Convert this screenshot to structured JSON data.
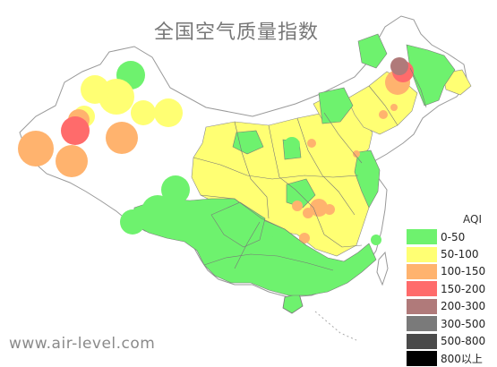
{
  "title": "全国空气质量指数",
  "site": "www.air-level.com",
  "legend": {
    "title": "AQI",
    "items": [
      {
        "label": "0-50",
        "color": "#6ef26e"
      },
      {
        "label": "50-100",
        "color": "#ffff73"
      },
      {
        "label": "100-150",
        "color": "#ffb36e"
      },
      {
        "label": "150-200",
        "color": "#ff6b6b"
      },
      {
        "label": "200-300",
        "color": "#b07a7a"
      },
      {
        "label": "300-500",
        "color": "#7a7a7a"
      },
      {
        "label": "500-800",
        "color": "#4a4a4a"
      },
      {
        "label": "800以上",
        "color": "#000000"
      }
    ]
  },
  "colors": {
    "outline": "#999999",
    "province_line": "#777777"
  }
}
